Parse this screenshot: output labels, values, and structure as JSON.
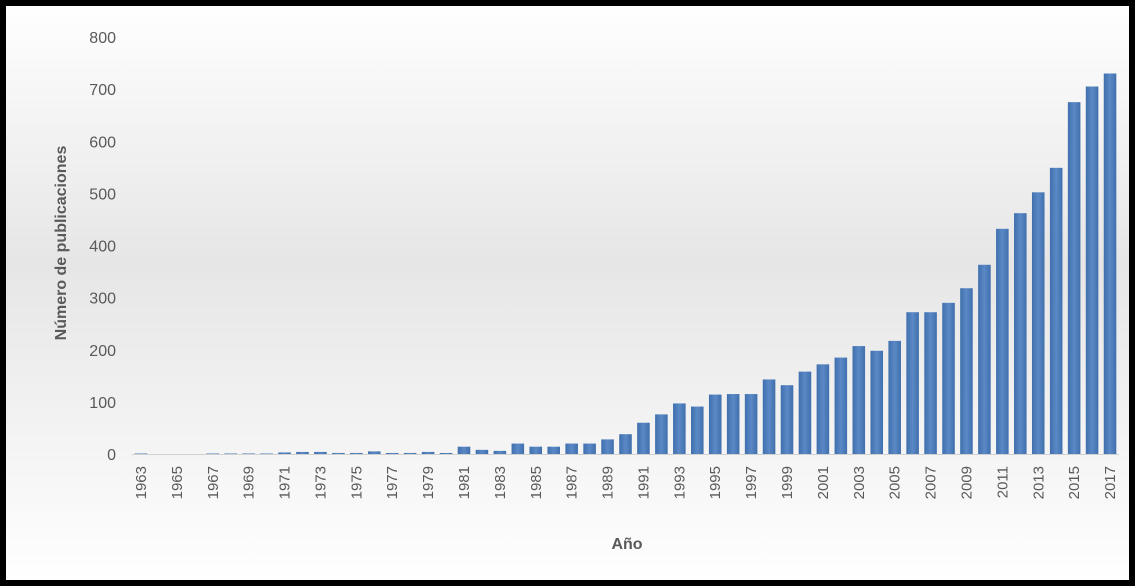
{
  "chart_data": {
    "type": "bar",
    "title": "",
    "xlabel": "Año",
    "ylabel": "Número de publicaciones",
    "ylim": [
      0,
      800
    ],
    "yticks": [
      0,
      100,
      200,
      300,
      400,
      500,
      600,
      700,
      800
    ],
    "grid": false,
    "legend": "none",
    "bar_color": "#4f7fbd",
    "categories": [
      "1963",
      "1964",
      "1965",
      "1966",
      "1967",
      "1968",
      "1969",
      "1970",
      "1971",
      "1972",
      "1973",
      "1974",
      "1975",
      "1976",
      "1977",
      "1978",
      "1979",
      "1980",
      "1981",
      "1982",
      "1983",
      "1984",
      "1985",
      "1986",
      "1987",
      "1988",
      "1989",
      "1990",
      "1991",
      "1992",
      "1993",
      "1994",
      "1995",
      "1996",
      "1997",
      "1998",
      "1999",
      "2000",
      "2001",
      "2002",
      "2003",
      "2004",
      "2005",
      "2006",
      "2007",
      "2008",
      "2009",
      "2010",
      "2011",
      "2012",
      "2013",
      "2014",
      "2015",
      "2016",
      "2017"
    ],
    "tick_labels": [
      "1963",
      "",
      "1965",
      "",
      "1967",
      "",
      "1969",
      "",
      "1971",
      "",
      "1973",
      "",
      "1975",
      "",
      "1977",
      "",
      "1979",
      "",
      "1981",
      "",
      "1983",
      "",
      "1985",
      "",
      "1987",
      "",
      "1989",
      "",
      "1991",
      "",
      "1993",
      "",
      "1995",
      "",
      "1997",
      "",
      "1999",
      "",
      "2001",
      "",
      "2003",
      "",
      "2005",
      "",
      "2007",
      "",
      "2009",
      "",
      "2011",
      "",
      "2013",
      "",
      "2015",
      "",
      "2017"
    ],
    "values": [
      1,
      0,
      0,
      0,
      1,
      1,
      1,
      1,
      3,
      4,
      4,
      2,
      2,
      5,
      2,
      2,
      4,
      2,
      14,
      8,
      6,
      20,
      14,
      14,
      20,
      20,
      28,
      38,
      60,
      76,
      97,
      91,
      114,
      115,
      115,
      143,
      132,
      158,
      172,
      185,
      207,
      198,
      217,
      272,
      272,
      290,
      318,
      363,
      432,
      462,
      502,
      549,
      675,
      705,
      730
    ]
  }
}
